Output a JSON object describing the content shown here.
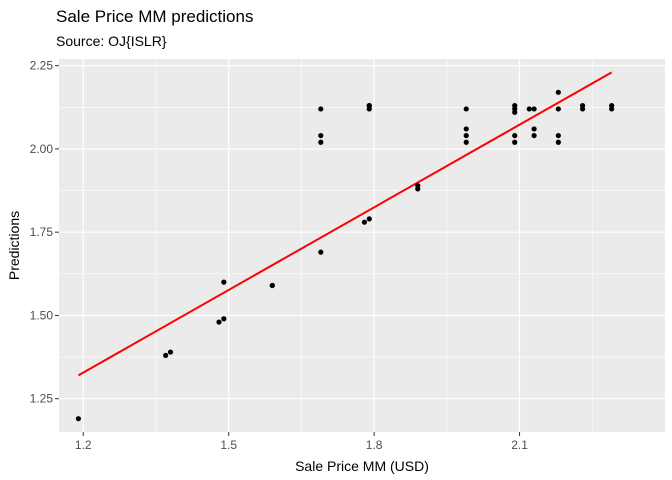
{
  "chart_data": {
    "type": "scatter",
    "title": "Sale Price MM predictions",
    "subtitle": "Source: OJ{ISLR}",
    "xlabel": "Sale Price MM (USD)",
    "ylabel": "Predictions",
    "xlim": [
      1.15,
      2.4
    ],
    "ylim": [
      1.15,
      2.27
    ],
    "x_ticks": [
      1.2,
      1.5,
      1.8,
      2.1
    ],
    "x_tick_labels": [
      "1.2",
      "1.5",
      "1.8",
      "2.1"
    ],
    "y_ticks": [
      1.25,
      1.5,
      1.75,
      2.0,
      2.25
    ],
    "y_tick_labels": [
      "1.25",
      "1.50",
      "1.75",
      "2.00",
      "2.25"
    ],
    "grid": true,
    "point_color": "#000000",
    "line_color": "#ff0000",
    "panel_background": "#ebebeb",
    "points": [
      {
        "x": 1.19,
        "y": 1.19
      },
      {
        "x": 1.37,
        "y": 1.38
      },
      {
        "x": 1.38,
        "y": 1.39
      },
      {
        "x": 1.48,
        "y": 1.48
      },
      {
        "x": 1.49,
        "y": 1.49
      },
      {
        "x": 1.49,
        "y": 1.6
      },
      {
        "x": 1.59,
        "y": 1.59
      },
      {
        "x": 1.59,
        "y": 1.59
      },
      {
        "x": 1.69,
        "y": 1.69
      },
      {
        "x": 1.69,
        "y": 2.02
      },
      {
        "x": 1.69,
        "y": 2.04
      },
      {
        "x": 1.69,
        "y": 2.12
      },
      {
        "x": 1.78,
        "y": 1.78
      },
      {
        "x": 1.79,
        "y": 1.79
      },
      {
        "x": 1.79,
        "y": 2.12
      },
      {
        "x": 1.79,
        "y": 2.13
      },
      {
        "x": 1.79,
        "y": 2.13
      },
      {
        "x": 1.89,
        "y": 1.88
      },
      {
        "x": 1.89,
        "y": 1.89
      },
      {
        "x": 1.99,
        "y": 2.02
      },
      {
        "x": 1.99,
        "y": 2.04
      },
      {
        "x": 1.99,
        "y": 2.06
      },
      {
        "x": 1.99,
        "y": 2.12
      },
      {
        "x": 2.09,
        "y": 2.02
      },
      {
        "x": 2.09,
        "y": 2.04
      },
      {
        "x": 2.09,
        "y": 2.11
      },
      {
        "x": 2.09,
        "y": 2.12
      },
      {
        "x": 2.09,
        "y": 2.13
      },
      {
        "x": 2.12,
        "y": 2.12
      },
      {
        "x": 2.13,
        "y": 2.04
      },
      {
        "x": 2.13,
        "y": 2.06
      },
      {
        "x": 2.13,
        "y": 2.12
      },
      {
        "x": 2.18,
        "y": 2.02
      },
      {
        "x": 2.18,
        "y": 2.04
      },
      {
        "x": 2.18,
        "y": 2.12
      },
      {
        "x": 2.18,
        "y": 2.17
      },
      {
        "x": 2.23,
        "y": 2.12
      },
      {
        "x": 2.23,
        "y": 2.13
      },
      {
        "x": 2.29,
        "y": 2.12
      },
      {
        "x": 2.29,
        "y": 2.13
      }
    ],
    "fit_line": {
      "x": [
        1.19,
        2.29
      ],
      "y": [
        1.32,
        2.23
      ]
    }
  }
}
